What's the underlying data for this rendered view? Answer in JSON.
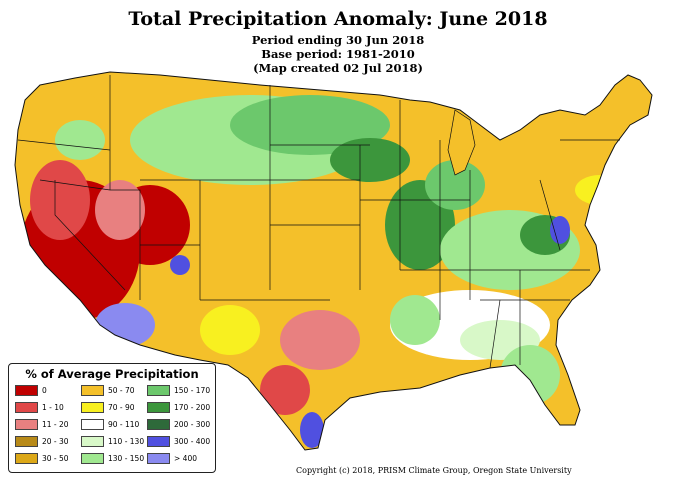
{
  "header": {
    "title": "Total Precipitation Anomaly: June 2018",
    "period": "Period ending 30 Jun 2018",
    "base_period": "Base period: 1981-2010",
    "created": "(Map created 02 Jul 2018)"
  },
  "legend": {
    "title": "% of Average Precipitation",
    "items": [
      {
        "label": "0",
        "color": "#c00000"
      },
      {
        "label": "1 - 10",
        "color": "#e04848"
      },
      {
        "label": "11 - 20",
        "color": "#e88080"
      },
      {
        "label": "20 - 30",
        "color": "#b88a18"
      },
      {
        "label": "30 - 50",
        "color": "#dca818"
      },
      {
        "label": "50 - 70",
        "color": "#f4c02a"
      },
      {
        "label": "70 - 90",
        "color": "#f8f020"
      },
      {
        "label": "90 - 110",
        "color": "#ffffff"
      },
      {
        "label": "110 - 130",
        "color": "#d8f8c8"
      },
      {
        "label": "130 - 150",
        "color": "#a0e890"
      },
      {
        "label": "150 - 170",
        "color": "#6cc86c"
      },
      {
        "label": "170 - 200",
        "color": "#3c963c"
      },
      {
        "label": "200 - 300",
        "color": "#2e6a3a"
      },
      {
        "label": "300 - 400",
        "color": "#5050e0"
      },
      {
        "label": "> 400",
        "color": "#8a8af0"
      }
    ]
  },
  "copyright": "Copyright (c) 2018, PRISM Climate Group, Oregon State University"
}
